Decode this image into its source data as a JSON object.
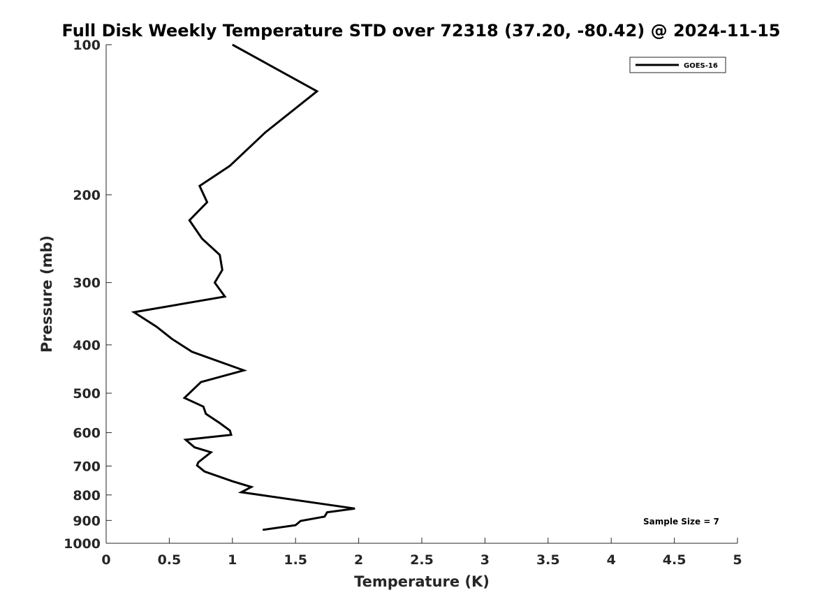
{
  "chart_data": {
    "type": "line",
    "title": "Full Disk Weekly Temperature STD over 72318 (37.20, -80.42) @ 2024-11-15",
    "xlabel": "Temperature (K)",
    "ylabel": "Pressure (mb)",
    "xlim": [
      0,
      5
    ],
    "ylim": [
      100,
      1000
    ],
    "y_scale": "log",
    "y_reversed": true,
    "x_ticks": [
      "0",
      "0.5",
      "1",
      "1.5",
      "2",
      "2.5",
      "3",
      "3.5",
      "4",
      "4.5",
      "5"
    ],
    "y_ticks": [
      "100",
      "200",
      "300",
      "400",
      "500",
      "600",
      "700",
      "800",
      "900",
      "1000"
    ],
    "grid": false,
    "legend": {
      "location": "top-right",
      "entries": [
        "GOES-16"
      ]
    },
    "annotation": "Sample Size = 7",
    "series": [
      {
        "name": "GOES-16",
        "color": "#000000",
        "points": [
          [
            1.0,
            100
          ],
          [
            1.67,
            124
          ],
          [
            1.26,
            150
          ],
          [
            0.98,
            175
          ],
          [
            0.74,
            192
          ],
          [
            0.8,
            207
          ],
          [
            0.66,
            225
          ],
          [
            0.76,
            245
          ],
          [
            0.9,
            264
          ],
          [
            0.92,
            283
          ],
          [
            0.86,
            300
          ],
          [
            0.94,
            320
          ],
          [
            0.22,
            344
          ],
          [
            0.4,
            368
          ],
          [
            0.52,
            389
          ],
          [
            0.68,
            413
          ],
          [
            1.09,
            450
          ],
          [
            0.75,
            475
          ],
          [
            0.74,
            478
          ],
          [
            0.62,
            511
          ],
          [
            0.77,
            532
          ],
          [
            0.79,
            550
          ],
          [
            0.9,
            574
          ],
          [
            0.98,
            594
          ],
          [
            0.99,
            606
          ],
          [
            0.63,
            620
          ],
          [
            0.7,
            642
          ],
          [
            0.83,
            657
          ],
          [
            0.73,
            688
          ],
          [
            0.72,
            698
          ],
          [
            0.78,
            718
          ],
          [
            1.0,
            751
          ],
          [
            1.15,
            771
          ],
          [
            1.07,
            790
          ],
          [
            1.97,
            852
          ],
          [
            1.75,
            867
          ],
          [
            1.73,
            884
          ],
          [
            1.54,
            902
          ],
          [
            1.5,
            920
          ],
          [
            1.24,
            940
          ]
        ]
      }
    ]
  }
}
